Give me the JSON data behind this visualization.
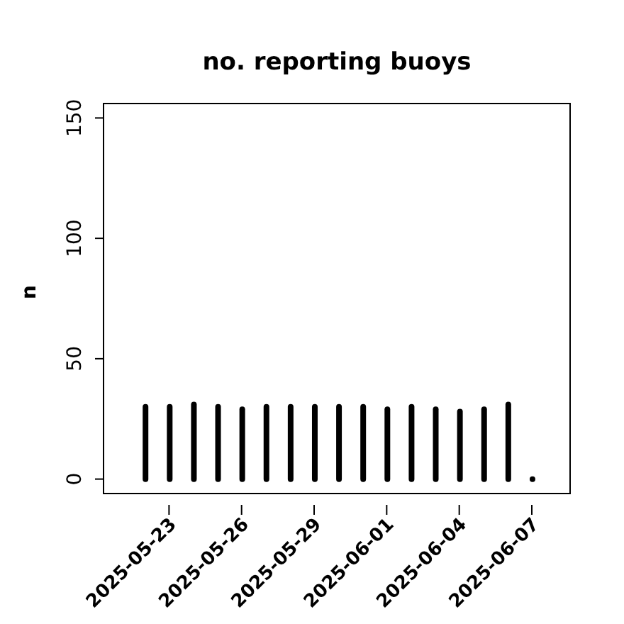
{
  "chart_data": {
    "type": "bar",
    "title": "no. reporting buoys",
    "ylabel": "n",
    "x": [
      "2025-05-22",
      "2025-05-23",
      "2025-05-24",
      "2025-05-25",
      "2025-05-26",
      "2025-05-27",
      "2025-05-28",
      "2025-05-29",
      "2025-05-30",
      "2025-05-31",
      "2025-06-01",
      "2025-06-02",
      "2025-06-03",
      "2025-06-04",
      "2025-06-05",
      "2025-06-06",
      "2025-06-07"
    ],
    "values": [
      30,
      30,
      31,
      30,
      29,
      30,
      30,
      30,
      30,
      30,
      29,
      30,
      29,
      28,
      29,
      31,
      0
    ],
    "color": "#000000",
    "xlim": [
      "2025-05-20T07:00",
      "2025-06-08T14:00"
    ],
    "xticks": [
      "2025-05-23",
      "2025-05-26",
      "2025-05-29",
      "2025-06-01",
      "2025-06-04",
      "2025-06-07"
    ],
    "ylim": [
      -6,
      156
    ],
    "yticks": [
      0,
      50,
      100,
      150
    ],
    "grid": false
  }
}
